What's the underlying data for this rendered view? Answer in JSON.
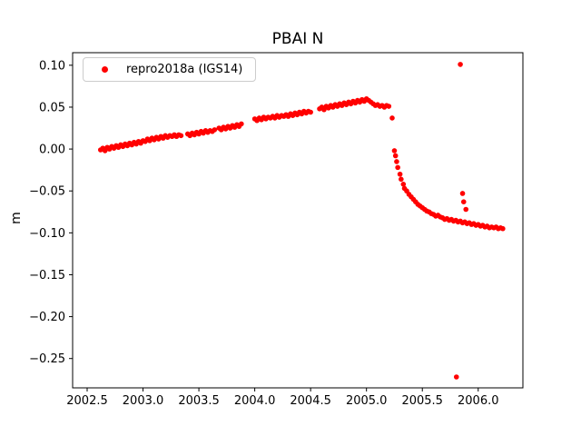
{
  "chart_data": {
    "type": "scatter",
    "title": "PBAI N",
    "xlabel": "",
    "ylabel": "m",
    "grid": false,
    "legend": {
      "position": "upper left",
      "entries": [
        {
          "label": "repro2018a (IGS14)",
          "color": "#ff0000"
        }
      ]
    },
    "xlim": [
      2002.37,
      2006.4
    ],
    "ylim": [
      -0.285,
      0.115
    ],
    "xticks": [
      {
        "v": 2002.5,
        "label": "2002.5"
      },
      {
        "v": 2003.0,
        "label": "2003.0"
      },
      {
        "v": 2003.5,
        "label": "2003.5"
      },
      {
        "v": 2004.0,
        "label": "2004.0"
      },
      {
        "v": 2004.5,
        "label": "2004.5"
      },
      {
        "v": 2005.0,
        "label": "2005.0"
      },
      {
        "v": 2005.5,
        "label": "2005.5"
      },
      {
        "v": 2006.0,
        "label": "2006.0"
      }
    ],
    "yticks": [
      {
        "v": 0.1,
        "label": "0.10"
      },
      {
        "v": 0.05,
        "label": "0.05"
      },
      {
        "v": 0.0,
        "label": "0.00"
      },
      {
        "v": -0.05,
        "label": "−0.05"
      },
      {
        "v": -0.1,
        "label": "−0.10"
      },
      {
        "v": -0.15,
        "label": "−0.15"
      },
      {
        "v": -0.2,
        "label": "−0.20"
      },
      {
        "v": -0.25,
        "label": "−0.25"
      }
    ],
    "marker": {
      "shape": "circle",
      "color": "#ff0000",
      "size": 2.8
    },
    "colors": {
      "marker": "#ff0000",
      "axes": "#000000",
      "legend_border": "#cccccc",
      "background": "#ffffff"
    },
    "series": [
      {
        "name": "repro2018a (IGS14)",
        "color": "#ff0000",
        "points": [
          [
            2002.62,
            -0.001
          ],
          [
            2002.64,
            0.001
          ],
          [
            2002.66,
            -0.002
          ],
          [
            2002.68,
            0.002
          ],
          [
            2002.7,
            0.0
          ],
          [
            2002.72,
            0.003
          ],
          [
            2002.74,
            0.001
          ],
          [
            2002.76,
            0.004
          ],
          [
            2002.78,
            0.002
          ],
          [
            2002.8,
            0.005
          ],
          [
            2002.82,
            0.003
          ],
          [
            2002.84,
            0.006
          ],
          [
            2002.86,
            0.004
          ],
          [
            2002.88,
            0.007
          ],
          [
            2002.9,
            0.005
          ],
          [
            2002.92,
            0.008
          ],
          [
            2002.94,
            0.006
          ],
          [
            2002.96,
            0.009
          ],
          [
            2002.98,
            0.007
          ],
          [
            2003.0,
            0.01
          ],
          [
            2003.02,
            0.009
          ],
          [
            2003.04,
            0.012
          ],
          [
            2003.06,
            0.01
          ],
          [
            2003.08,
            0.013
          ],
          [
            2003.1,
            0.011
          ],
          [
            2003.12,
            0.014
          ],
          [
            2003.14,
            0.012
          ],
          [
            2003.16,
            0.015
          ],
          [
            2003.18,
            0.013
          ],
          [
            2003.2,
            0.016
          ],
          [
            2003.22,
            0.014
          ],
          [
            2003.24,
            0.016
          ],
          [
            2003.26,
            0.015
          ],
          [
            2003.28,
            0.017
          ],
          [
            2003.3,
            0.015
          ],
          [
            2003.32,
            0.017
          ],
          [
            2003.34,
            0.016
          ],
          [
            2003.4,
            0.018
          ],
          [
            2003.42,
            0.016
          ],
          [
            2003.44,
            0.019
          ],
          [
            2003.46,
            0.017
          ],
          [
            2003.48,
            0.02
          ],
          [
            2003.5,
            0.018
          ],
          [
            2003.52,
            0.021
          ],
          [
            2003.54,
            0.019
          ],
          [
            2003.56,
            0.022
          ],
          [
            2003.58,
            0.02
          ],
          [
            2003.6,
            0.022
          ],
          [
            2003.62,
            0.021
          ],
          [
            2003.64,
            0.023
          ],
          [
            2003.68,
            0.025
          ],
          [
            2003.7,
            0.023
          ],
          [
            2003.72,
            0.026
          ],
          [
            2003.74,
            0.024
          ],
          [
            2003.76,
            0.027
          ],
          [
            2003.78,
            0.025
          ],
          [
            2003.8,
            0.028
          ],
          [
            2003.82,
            0.026
          ],
          [
            2003.84,
            0.029
          ],
          [
            2003.86,
            0.027
          ],
          [
            2003.88,
            0.03
          ],
          [
            2004.0,
            0.036
          ],
          [
            2004.02,
            0.034
          ],
          [
            2004.04,
            0.037
          ],
          [
            2004.06,
            0.035
          ],
          [
            2004.08,
            0.038
          ],
          [
            2004.1,
            0.036
          ],
          [
            2004.12,
            0.038
          ],
          [
            2004.14,
            0.037
          ],
          [
            2004.16,
            0.039
          ],
          [
            2004.18,
            0.037
          ],
          [
            2004.2,
            0.04
          ],
          [
            2004.22,
            0.038
          ],
          [
            2004.24,
            0.04
          ],
          [
            2004.26,
            0.039
          ],
          [
            2004.28,
            0.041
          ],
          [
            2004.3,
            0.039
          ],
          [
            2004.32,
            0.042
          ],
          [
            2004.34,
            0.04
          ],
          [
            2004.36,
            0.043
          ],
          [
            2004.38,
            0.041
          ],
          [
            2004.4,
            0.044
          ],
          [
            2004.42,
            0.042
          ],
          [
            2004.44,
            0.045
          ],
          [
            2004.46,
            0.043
          ],
          [
            2004.48,
            0.045
          ],
          [
            2004.5,
            0.044
          ],
          [
            2004.58,
            0.048
          ],
          [
            2004.6,
            0.05
          ],
          [
            2004.62,
            0.047
          ],
          [
            2004.64,
            0.051
          ],
          [
            2004.66,
            0.049
          ],
          [
            2004.68,
            0.052
          ],
          [
            2004.7,
            0.05
          ],
          [
            2004.72,
            0.053
          ],
          [
            2004.74,
            0.051
          ],
          [
            2004.76,
            0.054
          ],
          [
            2004.78,
            0.052
          ],
          [
            2004.8,
            0.055
          ],
          [
            2004.82,
            0.053
          ],
          [
            2004.84,
            0.056
          ],
          [
            2004.86,
            0.054
          ],
          [
            2004.88,
            0.057
          ],
          [
            2004.9,
            0.055
          ],
          [
            2004.92,
            0.058
          ],
          [
            2004.94,
            0.056
          ],
          [
            2004.96,
            0.059
          ],
          [
            2004.98,
            0.057
          ],
          [
            2005.0,
            0.06
          ],
          [
            2005.02,
            0.058
          ],
          [
            2005.04,
            0.056
          ],
          [
            2005.06,
            0.054
          ],
          [
            2005.08,
            0.052
          ],
          [
            2005.1,
            0.053
          ],
          [
            2005.12,
            0.051
          ],
          [
            2005.14,
            0.052
          ],
          [
            2005.16,
            0.05
          ],
          [
            2005.18,
            0.052
          ],
          [
            2005.2,
            0.051
          ],
          [
            2005.23,
            0.037
          ],
          [
            2005.25,
            -0.002
          ],
          [
            2005.26,
            -0.008
          ],
          [
            2005.27,
            -0.015
          ],
          [
            2005.28,
            -0.022
          ],
          [
            2005.3,
            -0.03
          ],
          [
            2005.31,
            -0.036
          ],
          [
            2005.33,
            -0.042
          ],
          [
            2005.34,
            -0.047
          ],
          [
            2005.36,
            -0.05
          ],
          [
            2005.38,
            -0.054
          ],
          [
            2005.4,
            -0.057
          ],
          [
            2005.42,
            -0.06
          ],
          [
            2005.44,
            -0.063
          ],
          [
            2005.46,
            -0.066
          ],
          [
            2005.48,
            -0.068
          ],
          [
            2005.5,
            -0.07
          ],
          [
            2005.52,
            -0.072
          ],
          [
            2005.54,
            -0.074
          ],
          [
            2005.56,
            -0.075
          ],
          [
            2005.58,
            -0.077
          ],
          [
            2005.6,
            -0.078
          ],
          [
            2005.62,
            -0.08
          ],
          [
            2005.64,
            -0.079
          ],
          [
            2005.66,
            -0.081
          ],
          [
            2005.68,
            -0.082
          ],
          [
            2005.7,
            -0.084
          ],
          [
            2005.72,
            -0.083
          ],
          [
            2005.74,
            -0.085
          ],
          [
            2005.76,
            -0.084
          ],
          [
            2005.78,
            -0.086
          ],
          [
            2005.8,
            -0.085
          ],
          [
            2005.82,
            -0.087
          ],
          [
            2005.84,
            -0.086
          ],
          [
            2005.86,
            -0.088
          ],
          [
            2005.88,
            -0.087
          ],
          [
            2005.9,
            -0.089
          ],
          [
            2005.92,
            -0.088
          ],
          [
            2005.94,
            -0.09
          ],
          [
            2005.96,
            -0.089
          ],
          [
            2005.98,
            -0.091
          ],
          [
            2006.0,
            -0.09
          ],
          [
            2006.02,
            -0.092
          ],
          [
            2006.04,
            -0.091
          ],
          [
            2006.06,
            -0.093
          ],
          [
            2006.08,
            -0.092
          ],
          [
            2006.1,
            -0.094
          ],
          [
            2006.12,
            -0.093
          ],
          [
            2006.14,
            -0.094
          ],
          [
            2006.16,
            -0.093
          ],
          [
            2006.18,
            -0.095
          ],
          [
            2006.2,
            -0.094
          ],
          [
            2006.22,
            -0.095
          ],
          [
            2005.805,
            -0.272
          ],
          [
            2005.84,
            0.101
          ],
          [
            2005.86,
            -0.053
          ],
          [
            2005.87,
            -0.063
          ],
          [
            2005.89,
            -0.072
          ]
        ]
      }
    ]
  }
}
